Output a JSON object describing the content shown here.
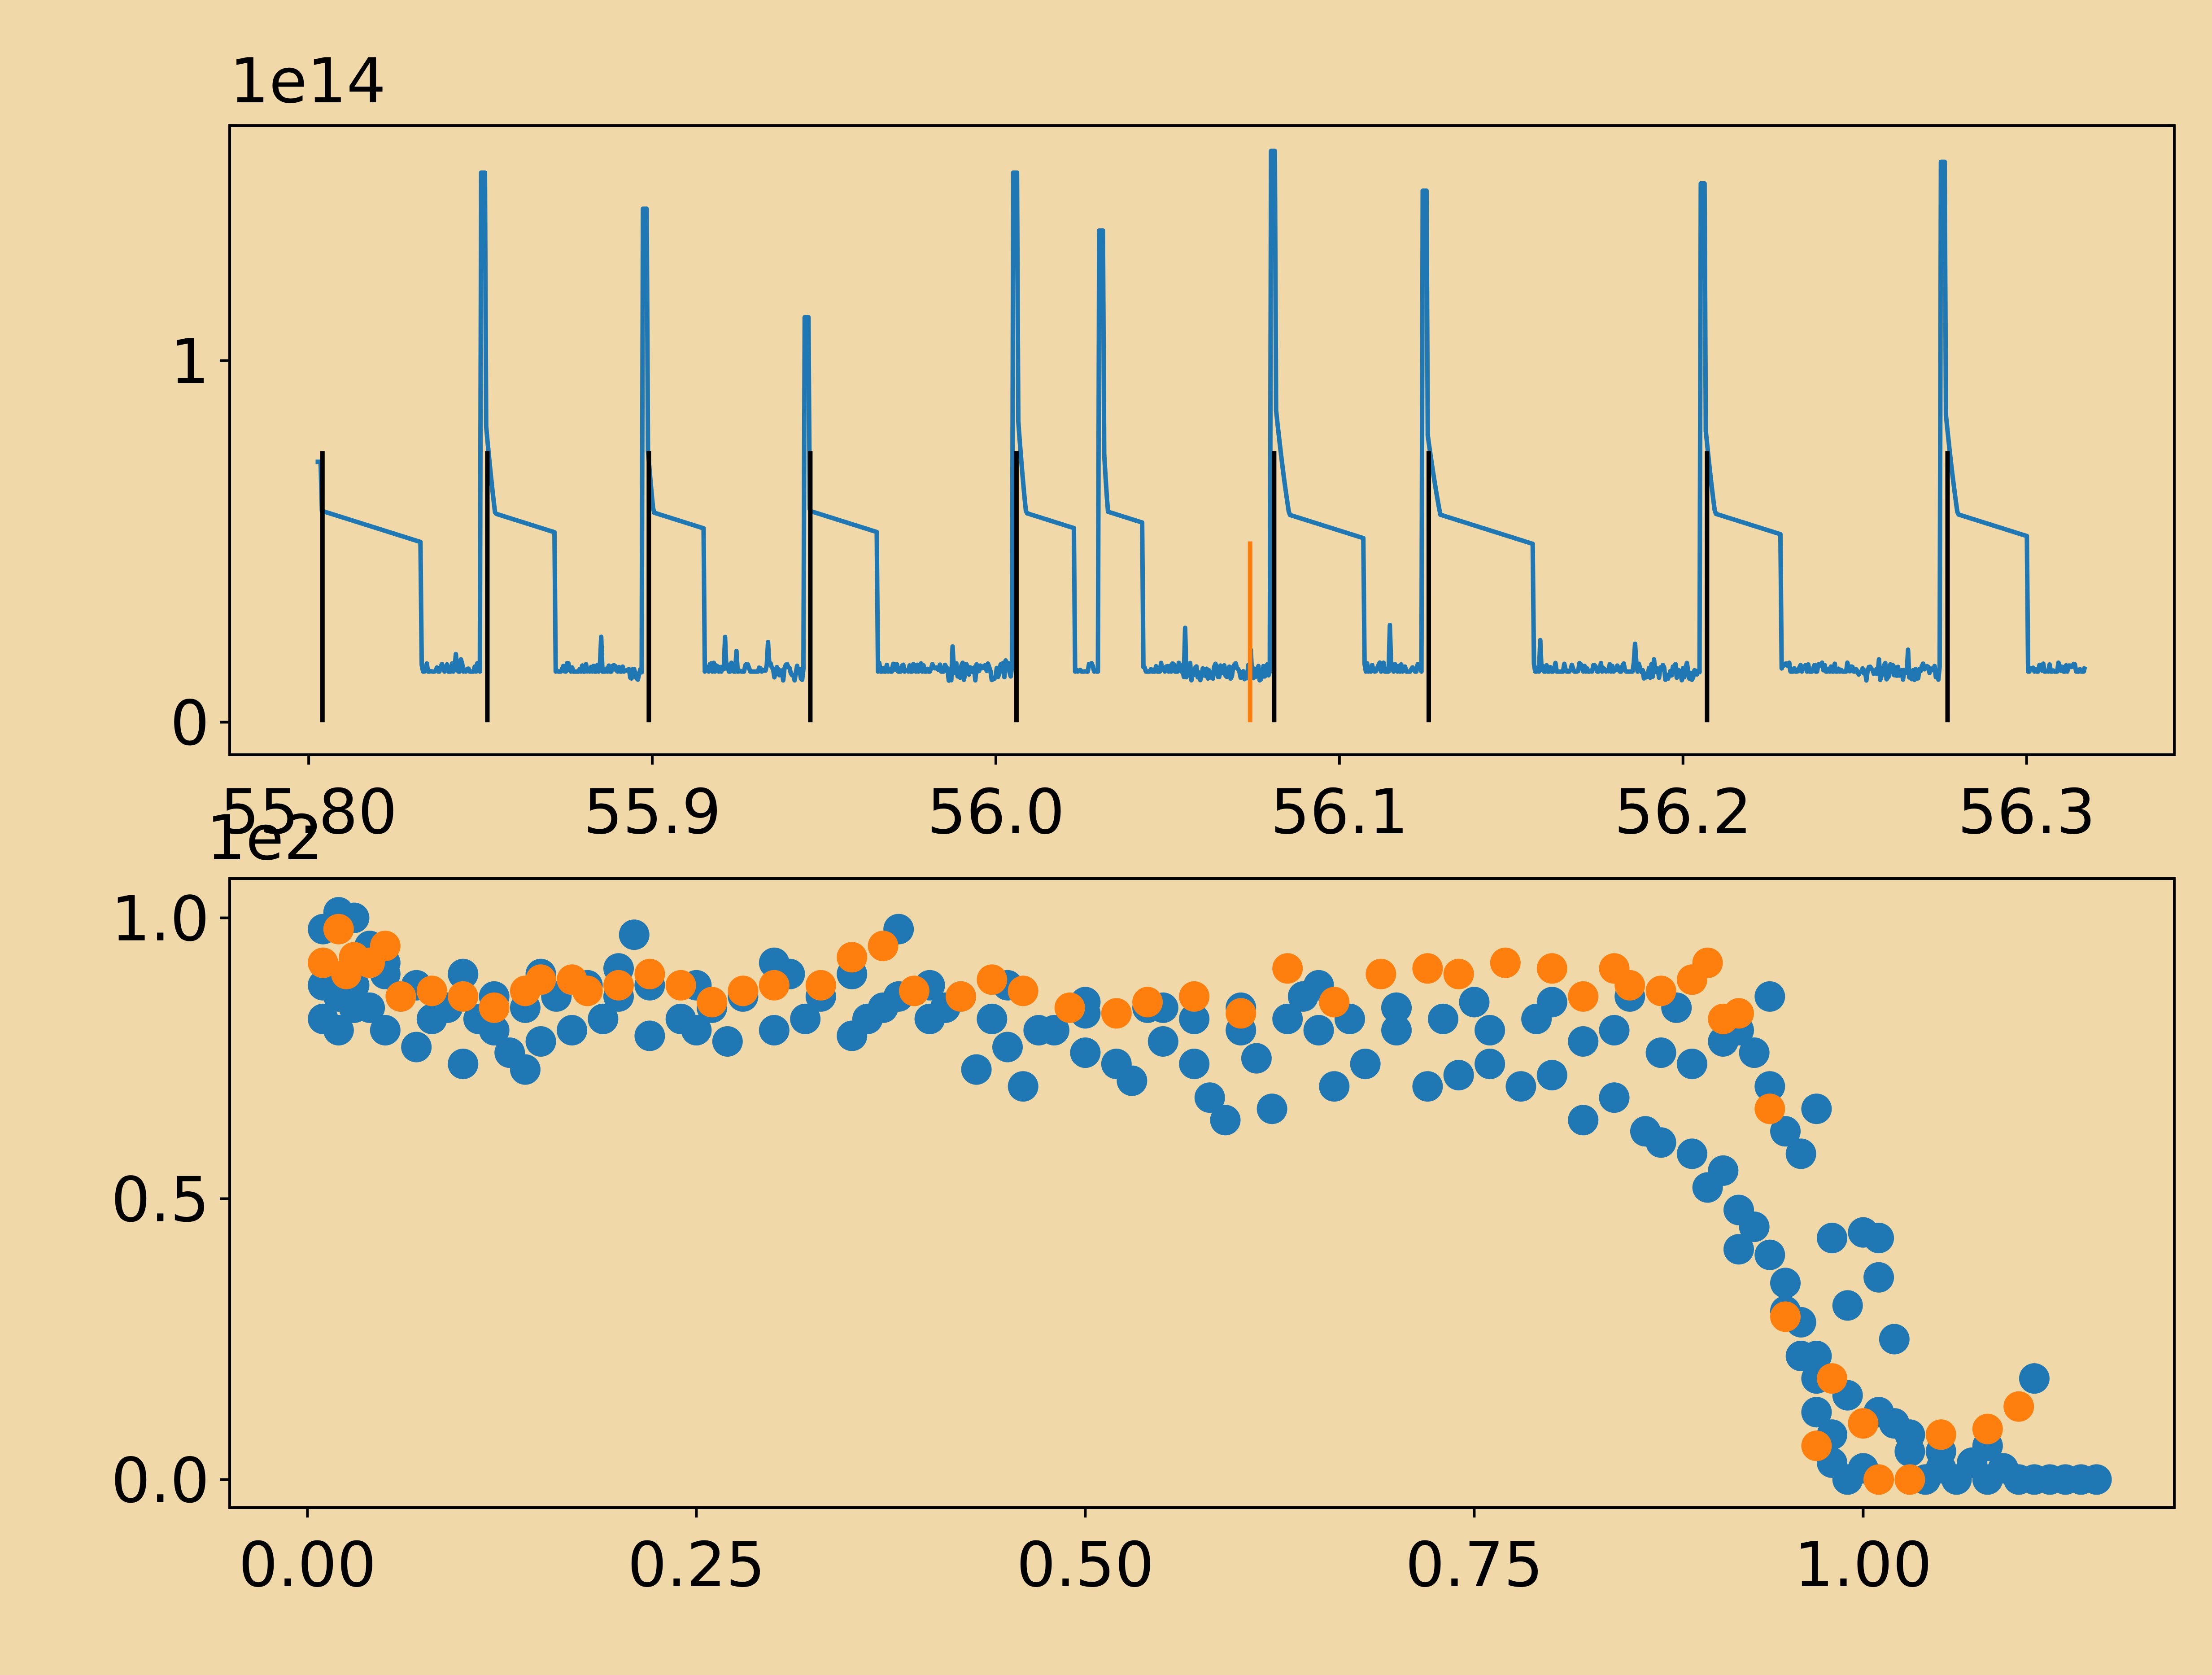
{
  "figure": {
    "background": "#f0d8a8"
  },
  "chart_data": [
    {
      "type": "line",
      "offset_text": "1e14",
      "x_scale_note": "",
      "xlim": [
        55.777,
        56.343
      ],
      "ylim": [
        -0.09,
        1.65
      ],
      "x_ticks": [
        55.8,
        55.9,
        56.0,
        56.1,
        56.2,
        56.3
      ],
      "x_tick_labels": [
        "55.80",
        "55.9",
        "56.0",
        "56.1",
        "56.2",
        "56.3"
      ],
      "y_ticks": [
        0,
        1
      ],
      "y_tick_labels": [
        "0",
        "1"
      ],
      "line_color": "#1f77b4",
      "baseline": 0.14,
      "x_start": 55.802,
      "x_end": 56.317,
      "spikes": [
        {
          "x": 55.802,
          "peak": 0.72,
          "decay": 0.017
        },
        {
          "x": 55.85,
          "peak": 1.52,
          "decay": 0.012
        },
        {
          "x": 55.897,
          "peak": 1.42,
          "decay": 0.01
        },
        {
          "x": 55.944,
          "peak": 1.12,
          "decay": 0.012
        },
        {
          "x": 56.005,
          "peak": 1.52,
          "decay": 0.01
        },
        {
          "x": 56.03,
          "peak": 1.36,
          "decay": 0.007
        },
        {
          "x": 56.08,
          "peak": 1.58,
          "decay": 0.015
        },
        {
          "x": 56.124,
          "peak": 1.47,
          "decay": 0.018
        },
        {
          "x": 56.205,
          "peak": 1.49,
          "decay": 0.013
        },
        {
          "x": 56.275,
          "peak": 1.55,
          "decay": 0.014
        }
      ],
      "black_markers": {
        "color": "#000000",
        "height": 0.75,
        "x": [
          55.804,
          55.852,
          55.899,
          55.946,
          56.006,
          56.081,
          56.126,
          56.207,
          56.277
        ]
      },
      "orange_marker": {
        "color": "#ff7f0e",
        "x": 56.074,
        "height": 0.5
      }
    },
    {
      "type": "scatter",
      "xlim": [
        -0.05,
        1.2
      ],
      "ylim": [
        -0.05,
        1.07
      ],
      "x_ticks": [
        0.0,
        0.25,
        0.5,
        0.75,
        1.0
      ],
      "x_tick_labels": [
        "0.00",
        "0.25",
        "0.50",
        "0.75",
        "1.00"
      ],
      "y_ticks": [
        0.0,
        0.5,
        1.0
      ],
      "y_tick_labels": [
        "0.0",
        "0.5",
        "1.0"
      ],
      "offset_text": "1e2",
      "series": [
        {
          "color": "#1f77b4",
          "points": [
            [
              0.01,
              0.98
            ],
            [
              0.02,
              1.01
            ],
            [
              0.03,
              1.0
            ],
            [
              0.04,
              0.95
            ],
            [
              0.05,
              0.9
            ],
            [
              0.01,
              0.82
            ],
            [
              0.02,
              0.8
            ],
            [
              0.03,
              0.84
            ],
            [
              0.05,
              0.8
            ],
            [
              0.07,
              0.77
            ],
            [
              0.08,
              0.82
            ],
            [
              0.1,
              0.74
            ],
            [
              0.12,
              0.8
            ],
            [
              0.13,
              0.76
            ],
            [
              0.14,
              0.73
            ],
            [
              0.15,
              0.78
            ],
            [
              0.17,
              0.8
            ],
            [
              0.19,
              0.82
            ],
            [
              0.21,
              0.97
            ],
            [
              0.22,
              0.79
            ],
            [
              0.25,
              0.8
            ],
            [
              0.27,
              0.78
            ],
            [
              0.3,
              0.8
            ],
            [
              0.32,
              0.82
            ],
            [
              0.35,
              0.79
            ],
            [
              0.37,
              0.84
            ],
            [
              0.38,
              0.98
            ],
            [
              0.4,
              0.82
            ],
            [
              0.42,
              0.86
            ],
            [
              0.43,
              0.73
            ],
            [
              0.45,
              0.77
            ],
            [
              0.46,
              0.7
            ],
            [
              0.48,
              0.8
            ],
            [
              0.5,
              0.76
            ],
            [
              0.52,
              0.74
            ],
            [
              0.53,
              0.71
            ],
            [
              0.55,
              0.78
            ],
            [
              0.57,
              0.74
            ],
            [
              0.58,
              0.68
            ],
            [
              0.59,
              0.64
            ],
            [
              0.61,
              0.75
            ],
            [
              0.62,
              0.66
            ],
            [
              0.63,
              0.82
            ],
            [
              0.65,
              0.8
            ],
            [
              0.66,
              0.7
            ],
            [
              0.68,
              0.74
            ],
            [
              0.7,
              0.8
            ],
            [
              0.72,
              0.7
            ],
            [
              0.74,
              0.72
            ],
            [
              0.76,
              0.74
            ],
            [
              0.78,
              0.7
            ],
            [
              0.8,
              0.72
            ],
            [
              0.82,
              0.64
            ],
            [
              0.84,
              0.68
            ],
            [
              0.86,
              0.62
            ],
            [
              0.87,
              0.6
            ],
            [
              0.89,
              0.58
            ],
            [
              0.9,
              0.52
            ],
            [
              0.91,
              0.55
            ],
            [
              0.92,
              0.48
            ],
            [
              0.93,
              0.45
            ],
            [
              0.92,
              0.41
            ],
            [
              0.94,
              0.4
            ],
            [
              0.95,
              0.35
            ],
            [
              0.95,
              0.3
            ],
            [
              0.96,
              0.28
            ],
            [
              0.96,
              0.22
            ],
            [
              0.97,
              0.18
            ],
            [
              0.97,
              0.12
            ],
            [
              0.98,
              0.08
            ],
            [
              0.98,
              0.03
            ],
            [
              0.99,
              0.0
            ],
            [
              1.0,
              0.02
            ],
            [
              1.01,
              0.36
            ],
            [
              1.02,
              0.25
            ],
            [
              1.02,
              0.1
            ],
            [
              1.03,
              0.05
            ],
            [
              1.04,
              0.0
            ],
            [
              1.05,
              0.02
            ],
            [
              1.06,
              0.0
            ],
            [
              1.07,
              0.03
            ],
            [
              1.08,
              0.0
            ],
            [
              1.09,
              0.02
            ],
            [
              1.1,
              0.0
            ],
            [
              1.11,
              0.0
            ],
            [
              1.12,
              0.0
            ],
            [
              1.13,
              0.0
            ],
            [
              1.14,
              0.0
            ],
            [
              1.15,
              0.0
            ],
            [
              0.98,
              0.43
            ],
            [
              1.0,
              0.44
            ],
            [
              1.01,
              0.43
            ],
            [
              0.99,
              0.31
            ],
            [
              0.97,
              0.66
            ],
            [
              0.94,
              0.86
            ],
            [
              0.92,
              0.8
            ],
            [
              0.88,
              0.84
            ],
            [
              0.85,
              0.86
            ],
            [
              0.8,
              0.85
            ],
            [
              0.75,
              0.85
            ],
            [
              0.7,
              0.84
            ],
            [
              0.65,
              0.88
            ],
            [
              0.6,
              0.84
            ],
            [
              0.55,
              0.84
            ],
            [
              0.5,
              0.85
            ],
            [
              0.45,
              0.88
            ],
            [
              0.4,
              0.88
            ],
            [
              0.35,
              0.9
            ],
            [
              0.3,
              0.92
            ],
            [
              0.25,
              0.88
            ],
            [
              0.2,
              0.91
            ],
            [
              0.15,
              0.9
            ],
            [
              0.1,
              0.9
            ],
            [
              0.05,
              0.92
            ],
            [
              1.11,
              0.18
            ],
            [
              1.08,
              0.06
            ],
            [
              1.05,
              0.05
            ],
            [
              1.03,
              0.08
            ],
            [
              1.01,
              0.12
            ],
            [
              0.99,
              0.15
            ],
            [
              0.97,
              0.22
            ],
            [
              0.96,
              0.58
            ],
            [
              0.95,
              0.62
            ],
            [
              0.94,
              0.7
            ],
            [
              0.93,
              0.76
            ],
            [
              0.91,
              0.78
            ],
            [
              0.89,
              0.74
            ],
            [
              0.87,
              0.76
            ],
            [
              0.84,
              0.8
            ],
            [
              0.82,
              0.78
            ],
            [
              0.79,
              0.82
            ],
            [
              0.76,
              0.8
            ],
            [
              0.73,
              0.82
            ],
            [
              0.7,
              0.84
            ],
            [
              0.67,
              0.82
            ],
            [
              0.64,
              0.86
            ],
            [
              0.6,
              0.8
            ],
            [
              0.57,
              0.82
            ],
            [
              0.54,
              0.84
            ],
            [
              0.5,
              0.83
            ],
            [
              0.47,
              0.8
            ],
            [
              0.44,
              0.82
            ],
            [
              0.41,
              0.84
            ],
            [
              0.38,
              0.86
            ],
            [
              0.36,
              0.82
            ],
            [
              0.33,
              0.86
            ],
            [
              0.31,
              0.9
            ],
            [
              0.28,
              0.86
            ],
            [
              0.26,
              0.84
            ],
            [
              0.24,
              0.82
            ],
            [
              0.22,
              0.88
            ],
            [
              0.2,
              0.86
            ],
            [
              0.18,
              0.88
            ],
            [
              0.16,
              0.86
            ],
            [
              0.14,
              0.84
            ],
            [
              0.12,
              0.86
            ],
            [
              0.11,
              0.82
            ],
            [
              0.09,
              0.84
            ],
            [
              0.07,
              0.88
            ],
            [
              0.06,
              0.86
            ],
            [
              0.04,
              0.84
            ],
            [
              0.03,
              0.88
            ],
            [
              0.02,
              0.86
            ],
            [
              0.01,
              0.88
            ]
          ]
        },
        {
          "color": "#ff7f0e",
          "points": [
            [
              0.01,
              0.92
            ],
            [
              0.02,
              0.98
            ],
            [
              0.025,
              0.9
            ],
            [
              0.03,
              0.93
            ],
            [
              0.04,
              0.92
            ],
            [
              0.05,
              0.95
            ],
            [
              0.06,
              0.86
            ],
            [
              0.08,
              0.87
            ],
            [
              0.1,
              0.86
            ],
            [
              0.12,
              0.84
            ],
            [
              0.14,
              0.87
            ],
            [
              0.15,
              0.89
            ],
            [
              0.17,
              0.89
            ],
            [
              0.18,
              0.87
            ],
            [
              0.2,
              0.88
            ],
            [
              0.22,
              0.9
            ],
            [
              0.24,
              0.88
            ],
            [
              0.26,
              0.85
            ],
            [
              0.28,
              0.87
            ],
            [
              0.3,
              0.88
            ],
            [
              0.33,
              0.88
            ],
            [
              0.35,
              0.93
            ],
            [
              0.37,
              0.95
            ],
            [
              0.39,
              0.87
            ],
            [
              0.42,
              0.86
            ],
            [
              0.44,
              0.89
            ],
            [
              0.46,
              0.87
            ],
            [
              0.49,
              0.84
            ],
            [
              0.52,
              0.83
            ],
            [
              0.54,
              0.85
            ],
            [
              0.57,
              0.86
            ],
            [
              0.6,
              0.83
            ],
            [
              0.63,
              0.91
            ],
            [
              0.66,
              0.85
            ],
            [
              0.69,
              0.9
            ],
            [
              0.72,
              0.91
            ],
            [
              0.74,
              0.9
            ],
            [
              0.77,
              0.92
            ],
            [
              0.8,
              0.91
            ],
            [
              0.82,
              0.86
            ],
            [
              0.84,
              0.91
            ],
            [
              0.85,
              0.88
            ],
            [
              0.87,
              0.87
            ],
            [
              0.89,
              0.89
            ],
            [
              0.9,
              0.92
            ],
            [
              0.91,
              0.82
            ],
            [
              0.92,
              0.83
            ],
            [
              0.94,
              0.66
            ],
            [
              0.95,
              0.29
            ],
            [
              0.97,
              0.06
            ],
            [
              0.98,
              0.18
            ],
            [
              1.0,
              0.1
            ],
            [
              1.01,
              0.0
            ],
            [
              1.03,
              0.0
            ],
            [
              1.05,
              0.08
            ],
            [
              1.08,
              0.09
            ],
            [
              1.1,
              0.13
            ]
          ]
        }
      ]
    }
  ]
}
